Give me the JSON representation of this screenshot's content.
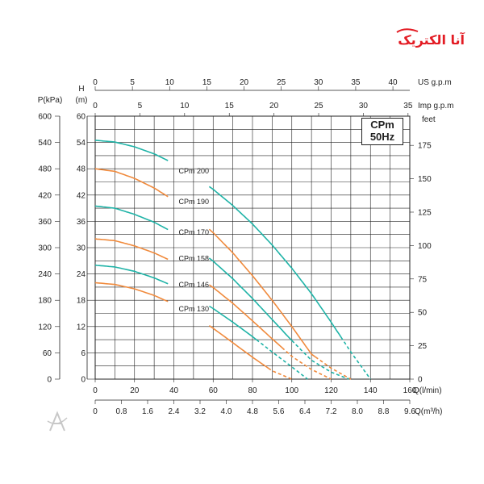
{
  "chart_data": {
    "type": "line",
    "model_box": {
      "model": "CPm",
      "frequency": "50Hz"
    },
    "logo_text": "آنا الکتریک",
    "axes": {
      "x_main": {
        "label": "Q(l/min)",
        "ticks": [
          "0",
          "20",
          "40",
          "60",
          "80",
          "100",
          "120",
          "140",
          "160"
        ],
        "range": [
          0,
          160
        ]
      },
      "x_m3h": {
        "label": "Q(m³/h)",
        "ticks": [
          "0",
          "0.8",
          "1.6",
          "2.4",
          "3.2",
          "4.0",
          "4.8",
          "5.6",
          "6.4",
          "7.2",
          "8.0",
          "8.8",
          "9.6"
        ]
      },
      "x_usgpm": {
        "label": "US  g.p.m",
        "ticks": [
          "0",
          "5",
          "10",
          "15",
          "20",
          "25",
          "30",
          "35",
          "40"
        ]
      },
      "x_impgpm": {
        "label": "Imp  g.p.m",
        "ticks": [
          "0",
          "5",
          "10",
          "15",
          "20",
          "25",
          "30",
          "35"
        ]
      },
      "y_head_m": {
        "label_top": "H",
        "label_unit": "(m)",
        "ticks": [
          "0",
          "6",
          "12",
          "18",
          "24",
          "30",
          "36",
          "42",
          "48",
          "54",
          "60"
        ],
        "range": [
          0,
          60
        ]
      },
      "y_pressure_kpa": {
        "label": "P(kPa)",
        "ticks": [
          "0",
          "60",
          "120",
          "180",
          "240",
          "300",
          "360",
          "420",
          "480",
          "540",
          "600"
        ]
      },
      "y_feet": {
        "label": "feet",
        "ticks": [
          "0",
          "25",
          "50",
          "75",
          "100",
          "125",
          "150",
          "175"
        ]
      }
    },
    "grid": true,
    "series": [
      {
        "name": "CPm 200",
        "color": "#1fb3a7",
        "solid_end": 125,
        "label_at": [
          40,
          47.5
        ],
        "x": [
          0,
          10,
          20,
          30,
          40,
          50,
          60,
          70,
          80,
          90,
          100,
          110,
          120,
          130,
          140
        ],
        "y": [
          54.5,
          54.1,
          53.0,
          51.4,
          49.2,
          46.5,
          43.3,
          39.6,
          35.4,
          30.6,
          25.3,
          19.5,
          13.0,
          6.2,
          0
        ]
      },
      {
        "name": "CPm 190",
        "color": "#f08a3c",
        "solid_end": 112,
        "label_at": [
          40,
          40.5
        ],
        "x": [
          0,
          10,
          20,
          30,
          40,
          50,
          60,
          70,
          80,
          90,
          100,
          110,
          120,
          130
        ],
        "y": [
          48.0,
          47.4,
          45.8,
          43.6,
          40.8,
          37.4,
          33.4,
          28.8,
          23.6,
          18.0,
          12.0,
          5.7,
          2.5,
          0
        ]
      },
      {
        "name": "CPm 170",
        "color": "#1fb3a7",
        "solid_end": 100,
        "label_at": [
          40,
          33.5
        ],
        "x": [
          0,
          10,
          20,
          30,
          40,
          50,
          60,
          70,
          80,
          90,
          100,
          110,
          120,
          129
        ],
        "y": [
          39.5,
          39.0,
          37.6,
          35.8,
          33.4,
          30.4,
          26.9,
          22.9,
          18.4,
          13.6,
          8.8,
          4.3,
          1.6,
          0
        ]
      },
      {
        "name": "CPm 158",
        "color": "#f08a3c",
        "solid_end": 95,
        "label_at": [
          40,
          27.5
        ],
        "x": [
          0,
          10,
          20,
          30,
          40,
          50,
          60,
          70,
          80,
          90,
          100,
          110,
          120
        ],
        "y": [
          32.0,
          31.6,
          30.4,
          28.8,
          26.7,
          24.0,
          20.9,
          17.3,
          13.3,
          9.2,
          5.2,
          2.2,
          0
        ]
      },
      {
        "name": "CPm 146",
        "color": "#1fb3a7",
        "solid_end": 82,
        "label_at": [
          40,
          21.5
        ],
        "x": [
          0,
          10,
          20,
          30,
          40,
          50,
          60,
          70,
          80,
          90,
          100,
          108
        ],
        "y": [
          26.0,
          25.6,
          24.6,
          23.1,
          21.2,
          18.9,
          16.1,
          13.0,
          9.7,
          6.2,
          2.8,
          0
        ]
      },
      {
        "name": "CPm 130",
        "color": "#f08a3c",
        "solid_end": 88,
        "label_at": [
          40,
          16.0
        ],
        "x": [
          0,
          10,
          20,
          30,
          40,
          50,
          60,
          70,
          80,
          90,
          100
        ],
        "y": [
          22.0,
          21.6,
          20.6,
          19.1,
          17.1,
          14.6,
          11.6,
          8.3,
          5.0,
          1.9,
          0
        ]
      }
    ]
  }
}
